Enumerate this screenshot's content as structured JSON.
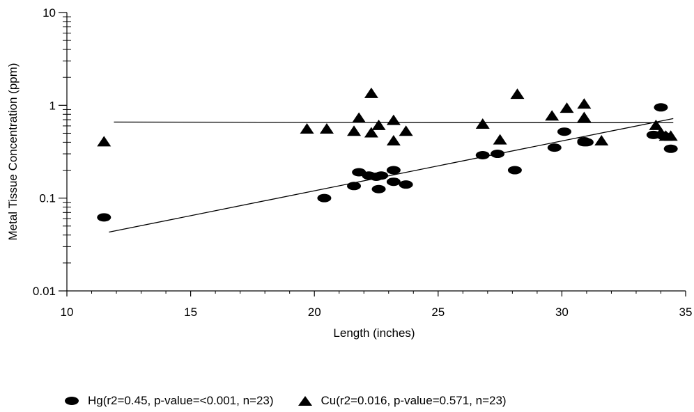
{
  "chart_data": {
    "type": "scatter",
    "title": "",
    "xlabel": "Length (inches)",
    "ylabel": "Metal Tissue Concentration (ppm)",
    "xlim": [
      10,
      35
    ],
    "ylim": [
      0.01,
      10
    ],
    "yscale": "log",
    "grid": false,
    "legend_position": "bottom",
    "x_ticks": [
      "10",
      "15",
      "20",
      "25",
      "30",
      "35"
    ],
    "y_ticks": [
      "0.01",
      "0.1",
      "1",
      "10"
    ],
    "series": [
      {
        "name": "Hg(r2=0.45, p-value=<0.001, n=23)",
        "marker": "ellipse",
        "color": "#000000",
        "x": [
          11.5,
          20.4,
          21.6,
          21.8,
          22.2,
          22.5,
          22.6,
          22.7,
          23.2,
          23.2,
          23.7,
          26.8,
          27.4,
          28.1,
          29.7,
          30.1,
          30.9,
          30.9,
          31.0,
          33.7,
          34.0,
          34.1,
          34.4
        ],
        "y": [
          0.062,
          0.1,
          0.135,
          0.19,
          0.175,
          0.17,
          0.125,
          0.175,
          0.2,
          0.15,
          0.14,
          0.29,
          0.3,
          0.2,
          0.35,
          0.52,
          0.4,
          0.41,
          0.4,
          0.48,
          0.95,
          0.47,
          0.34
        ]
      },
      {
        "name": "Cu(r2=0.016, p-value=0.571, n=23)",
        "marker": "triangle",
        "color": "#000000",
        "x": [
          11.5,
          19.7,
          20.5,
          21.6,
          21.8,
          22.3,
          22.3,
          22.6,
          23.2,
          23.2,
          23.7,
          26.8,
          27.5,
          28.2,
          29.6,
          30.2,
          30.9,
          30.9,
          31.6,
          33.8,
          34.0,
          34.2,
          34.4
        ],
        "y": [
          0.4,
          0.55,
          0.55,
          0.52,
          0.72,
          1.33,
          0.5,
          0.6,
          0.68,
          0.41,
          0.52,
          0.62,
          0.42,
          1.3,
          0.76,
          0.92,
          1.02,
          0.73,
          0.41,
          0.6,
          0.5,
          0.46,
          0.46
        ]
      }
    ],
    "fit_lines": [
      {
        "series": "Hg",
        "x": [
          11.7,
          34.5
        ],
        "y": [
          0.043,
          0.72
        ]
      },
      {
        "series": "Cu",
        "x": [
          11.9,
          34.5
        ],
        "y": [
          0.66,
          0.65
        ]
      }
    ]
  },
  "legend": {
    "items": [
      {
        "label": "Hg(r2=0.45, p-value=<0.001, n=23)"
      },
      {
        "label": "Cu(r2=0.016, p-value=0.571, n=23)"
      }
    ]
  }
}
